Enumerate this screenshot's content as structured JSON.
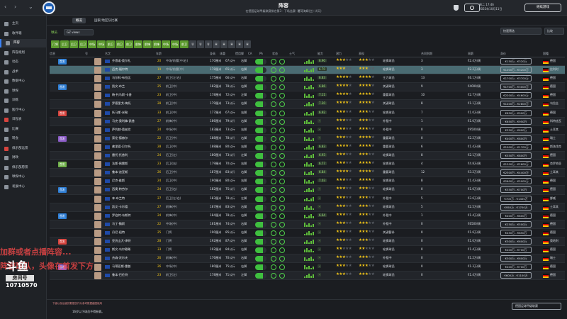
{
  "header": {
    "title": "阵容",
    "subtitle": "在德国足球甲级联赛排名第3 · 下场比赛: 薯荷海姆(主) (4天)",
    "date_line1": "周二 17:46",
    "date_line2": "2022年10月11日",
    "continue_label": "继续游戏"
  },
  "sidebar": {
    "items": [
      {
        "label": "主页"
      },
      {
        "label": "收件箱"
      },
      {
        "label": "阵容"
      },
      {
        "label": "阵容规划"
      },
      {
        "label": "动态"
      },
      {
        "label": "战术"
      },
      {
        "label": "数据中心"
      },
      {
        "label": "球探"
      },
      {
        "label": "训练"
      },
      {
        "label": "医疗中心"
      },
      {
        "label": "日程表"
      },
      {
        "label": "比赛"
      },
      {
        "label": "转会"
      },
      {
        "label": "俱乐部远景"
      },
      {
        "label": "财政"
      },
      {
        "label": "俱乐部愿景"
      },
      {
        "label": "球探中心"
      },
      {
        "label": "发展中心"
      }
    ],
    "douyu_logo": "斗鱼",
    "douyu_room": "房间号",
    "douyu_number": "10710570"
  },
  "toolbar": {
    "tabs": [
      {
        "label": "概况"
      },
      {
        "label": "国家/地区队比赛"
      }
    ],
    "view_label": "球员",
    "view_select": "GZ views",
    "quick_select": "快速筛选",
    "compare_select": "比较"
  },
  "position_filters": [
    "门将",
    "后卫",
    "后卫",
    "后卫",
    "中场",
    "中场",
    "前卫",
    "前卫",
    "前卫",
    "前锋",
    "前锋",
    "前锋",
    "中场",
    "中场",
    "前卫",
    "U",
    "U",
    "U",
    "H",
    "H",
    "H",
    "H",
    "H"
  ],
  "table": {
    "headers": [
      "信息",
      "号",
      "名字",
      "年龄",
      "身高",
      "体重",
      "惯用脚",
      "CA",
      "PA",
      "状态",
      "士气",
      "能力",
      "潜力",
      "表现",
      "合同到期",
      "周薪",
      "身价",
      "国籍"
    ],
    "rows": [
      {
        "name": "齐恩诺·奥尔扎",
        "age": "20",
        "pos": "中场/前腰(中/右)",
        "height": "170厘米",
        "weight": "67公斤",
        "foot": "右脚",
        "rating": "6.90",
        "stars": 3,
        "pstars": 3,
        "role": "轮换球员",
        "contract": "3",
        "wage": "€2.4万/周",
        "value": "€150万 - €320万",
        "nation": "德国"
      },
      {
        "name": "迈克·福尔特",
        "age": "19",
        "pos": "中场/前腰(中)",
        "height": "178厘米",
        "weight": "65公斤",
        "foot": "右脚",
        "rating": "6.70",
        "stars": 3,
        "pstars": 3,
        "role": "轮换球员",
        "contract": "3",
        "wage": "€2.2万/周",
        "value": "€1000万 - €3200万",
        "nation": "比利时"
      },
      {
        "name": "马尔科·布拉比",
        "age": "27",
        "pos": "前卫(左/右)",
        "height": "175厘米",
        "weight": "66公斤",
        "foot": "右脚",
        "rating": "6.83",
        "stars": 4,
        "pstars": 4,
        "role": "主力球员",
        "contract": "13",
        "wage": "€6.1万/周",
        "value": "€1700万 - €3700万",
        "nation": "德国"
      },
      {
        "name": "凯文·布兰",
        "age": "25",
        "pos": "前卫(中)",
        "height": "182厘米",
        "weight": "78公斤",
        "foot": "右脚",
        "rating": "6.86",
        "stars": 4,
        "pstars": 4,
        "role": "关键球员",
        "contract": "9",
        "wage": "€4000/周",
        "value": "€1700万 - €3000万",
        "nation": "德国"
      },
      {
        "name": "杨·托马斯·卡普",
        "age": "23",
        "pos": "前卫(中)",
        "height": "178厘米",
        "weight": "72公斤",
        "foot": "左脚",
        "rating": "7.11",
        "stars": 4,
        "pstars": 4,
        "role": "重要球员",
        "contract": "10",
        "wage": "€2.7万/周",
        "value": "€2200万 - €4600万",
        "nation": "德国"
      },
      {
        "name": "罗德里戈·梅托",
        "age": "28",
        "pos": "前卫(中)",
        "height": "179厘米",
        "weight": "73公斤",
        "foot": "右脚",
        "rating": "7.20",
        "stars": 4,
        "pstars": 4,
        "role": "关键球员",
        "contract": "8",
        "wage": "€1.1万/周",
        "value": "€1400万 - €2800万",
        "nation": "乌拉圭"
      },
      {
        "name": "托马斯·米勒",
        "age": "33",
        "pos": "前卫(中)",
        "height": "177厘米",
        "weight": "67公斤",
        "foot": "右脚",
        "rating": "6.92",
        "stars": 3,
        "pstars": 3,
        "role": "轮换球员",
        "contract": "7",
        "wage": "€1.0万/周",
        "value": "€650万 - €900万",
        "nation": "德国"
      },
      {
        "name": "马克·奥利弗·凯普",
        "age": "27",
        "pos": "前锋(中)",
        "height": "186厘米",
        "weight": "79公斤",
        "foot": "右脚",
        "rating": "-",
        "stars": 3,
        "pstars": 3,
        "role": "外租中",
        "contract": "1",
        "wage": "€1.0万/周",
        "value": "€650万 - €950万",
        "nation": "科特迪瓦"
      },
      {
        "name": "萨利赫·奥兹坎",
        "age": "24",
        "pos": "中场(中)",
        "height": "183厘米",
        "weight": "73公斤",
        "foot": "右脚",
        "rating": "-",
        "stars": 3,
        "pstars": 3,
        "role": "外租中",
        "contract": "0",
        "wage": "€9500/周",
        "value": "€350万 - €600万",
        "nation": "土耳其"
      },
      {
        "name": "索伦·德赫尔",
        "age": "22",
        "pos": "后卫(中)",
        "height": "188厘米",
        "weight": "78公斤",
        "foot": "右脚",
        "rating": "-",
        "stars": 3,
        "pstars": 4,
        "role": "重要球员",
        "contract": "0",
        "wage": "€2.2万/周",
        "value": "€400万 - €800万",
        "nation": "瑞士"
      },
      {
        "name": "弗里德·贝尔托",
        "age": "28",
        "pos": "后卫(中)",
        "height": "188厘米",
        "weight": "80公斤",
        "foot": "右脚",
        "rating": "6.83",
        "stars": 4,
        "pstars": 4,
        "role": "重要球员",
        "contract": "6",
        "wage": "€1.4万/周",
        "value": "€1000万 - €1700万",
        "nation": "斯洛伐克"
      },
      {
        "name": "雷托·托普利",
        "age": "24",
        "pos": "后卫(左)",
        "height": "180厘米",
        "weight": "73公斤",
        "foot": "左脚",
        "rating": "6.93",
        "stars": 3,
        "pstars": 3,
        "role": "轮换球员",
        "contract": "8",
        "wage": "€2.1万/周",
        "value": "€350万 - €800万",
        "nation": "德国"
      },
      {
        "name": "法斯·佩雷斯",
        "age": "23",
        "pos": "后卫(右)",
        "height": "179厘米",
        "weight": "70公斤",
        "foot": "右脚",
        "rating": "6.77",
        "stars": 3,
        "pstars": 4,
        "role": "轮换球员",
        "contract": "4",
        "wage": "€4.8万/周",
        "value": "€1200万 - €2600万",
        "nation": "克罗地亚"
      },
      {
        "name": "鲁本·迪亚斯",
        "age": "26",
        "pos": "后卫(中)",
        "height": "187厘米",
        "weight": "83公斤",
        "foot": "右脚",
        "rating": "6.84",
        "stars": 4,
        "pstars": 4,
        "role": "重要球员",
        "contract": "12",
        "wage": "€3.2万/周",
        "value": "€2300万 - €4400万",
        "nation": "土耳其"
      },
      {
        "name": "尼克·维斯",
        "age": "24",
        "pos": "后卫(中)",
        "height": "190厘米",
        "weight": "80公斤",
        "foot": "右脚",
        "rating": "7.03",
        "stars": 3,
        "pstars": 4,
        "role": "轮换球员",
        "contract": "8",
        "wage": "€1.4万/周",
        "value": "€2600万 - €5000万",
        "nation": "德国"
      },
      {
        "name": "西奥·特劳尔",
        "age": "24",
        "pos": "后卫(右)",
        "height": "182厘米",
        "weight": "75公斤",
        "foot": "右脚",
        "rating": "-",
        "stars": 3,
        "pstars": 3,
        "role": "轮换球员",
        "contract": "0",
        "wage": "€1.0万/周",
        "value": "€350万 - €700万",
        "nation": "德国"
      },
      {
        "name": "本·布兰特",
        "age": "27",
        "pos": "后卫(左/右)",
        "height": "183厘米",
        "weight": "78公斤",
        "foot": "左脚",
        "rating": "-",
        "stars": 3,
        "pstars": 3,
        "role": "外租中",
        "contract": "5",
        "wage": "€3.6万/周",
        "value": "€700万 - €1400万",
        "nation": "挪威"
      },
      {
        "name": "凯文·卡尔德",
        "age": "27",
        "pos": "前锋(中)",
        "height": "187厘米",
        "weight": "83公斤",
        "foot": "右脚",
        "rating": "-",
        "stars": 3,
        "pstars": 3,
        "role": "轮换球员",
        "contract": "5",
        "wage": "€2.5万/周",
        "value": "€950万 - €1700万",
        "nation": "土耳其"
      },
      {
        "name": "罗伯特·韦斯特",
        "age": "24",
        "pos": "前锋(中)",
        "height": "184厘米",
        "weight": "78公斤",
        "foot": "右脚",
        "rating": "6.64",
        "stars": 3,
        "pstars": 3,
        "role": "外租中",
        "contract": "1",
        "wage": "€1.4万/周",
        "value": "€400万 - €800万",
        "nation": "德国"
      },
      {
        "name": "马丁·魏斯",
        "age": "22",
        "pos": "中场(中)",
        "height": "181厘米",
        "weight": "74公斤",
        "foot": "右脚",
        "rating": "-",
        "stars": 3,
        "pstars": 3,
        "role": "外租中",
        "contract": "0",
        "wage": "€6500/周",
        "value": "€250万 - €500万",
        "nation": "德国"
      },
      {
        "name": "丹尼·纽特",
        "age": "25",
        "pos": "门将",
        "height": "190厘米",
        "weight": "85公斤",
        "foot": "右脚",
        "rating": "-",
        "stars": 3,
        "pstars": 3,
        "role": "关键替补",
        "contract": "0",
        "wage": "€1.6万/周",
        "value": "€450万 - €850万",
        "nation": "德国"
      },
      {
        "name": "亚历山大·泽特",
        "age": "28",
        "pos": "门将",
        "height": "192厘米",
        "weight": "87公斤",
        "foot": "右脚",
        "rating": "-",
        "stars": 3,
        "pstars": 3,
        "role": "轮换球员",
        "contract": "0",
        "wage": "€1.0万/周",
        "value": "€300万 - €600万",
        "nation": "奥地利"
      },
      {
        "name": "斯文·乌尔赖希",
        "age": "33",
        "pos": "门将",
        "height": "192厘米",
        "weight": "84公斤",
        "foot": "右脚",
        "rating": "-",
        "stars": 2,
        "pstars": 2,
        "role": "轮换球员",
        "contract": "0",
        "wage": "€1.4万/周",
        "value": "€400万 - €700万",
        "nation": "德国"
      },
      {
        "name": "杰森·沃尔夫",
        "age": "26",
        "pos": "前锋(中)",
        "height": "176厘米",
        "weight": "70公斤",
        "foot": "右脚",
        "rating": "-",
        "stars": 3,
        "pstars": 3,
        "role": "外租中",
        "contract": "0",
        "wage": "€1.2万/周",
        "value": "€300万 - €600万",
        "nation": "瑞士"
      },
      {
        "name": "马蒂亚斯·雷普",
        "age": "26",
        "pos": "中场(中)",
        "height": "180厘米",
        "weight": "75公斤",
        "foot": "右脚",
        "rating": "-",
        "stars": 3,
        "pstars": 3,
        "role": "轮换球员",
        "contract": "0",
        "wage": "€1.3万/周",
        "value": "€400万 - €700万",
        "nation": "德国"
      },
      {
        "name": "鲁本·巴伦特",
        "age": "23",
        "pos": "前卫(左)",
        "height": "178厘米",
        "weight": "71公斤",
        "foot": "左脚",
        "rating": "-",
        "stars": 3,
        "pstars": 3,
        "role": "轮换球员",
        "contract": "0",
        "wage": "€1.4万/周",
        "value": "€600万 - €1100万",
        "nation": "德国"
      }
    ]
  },
  "footer": {
    "note1": "下面以及后面的数据仅作为参考数据截图使用",
    "note2": "16岁以下球员不得参赛。",
    "league_select": "德国足球甲级联赛"
  },
  "overlay": {
    "line1": "加群或者点播阵容...",
    "line2": "阵容球队，头像在首发下方"
  },
  "colors": {
    "accent": "#3b82f6",
    "green": "#5c9a2e",
    "star": "#f0c419"
  }
}
